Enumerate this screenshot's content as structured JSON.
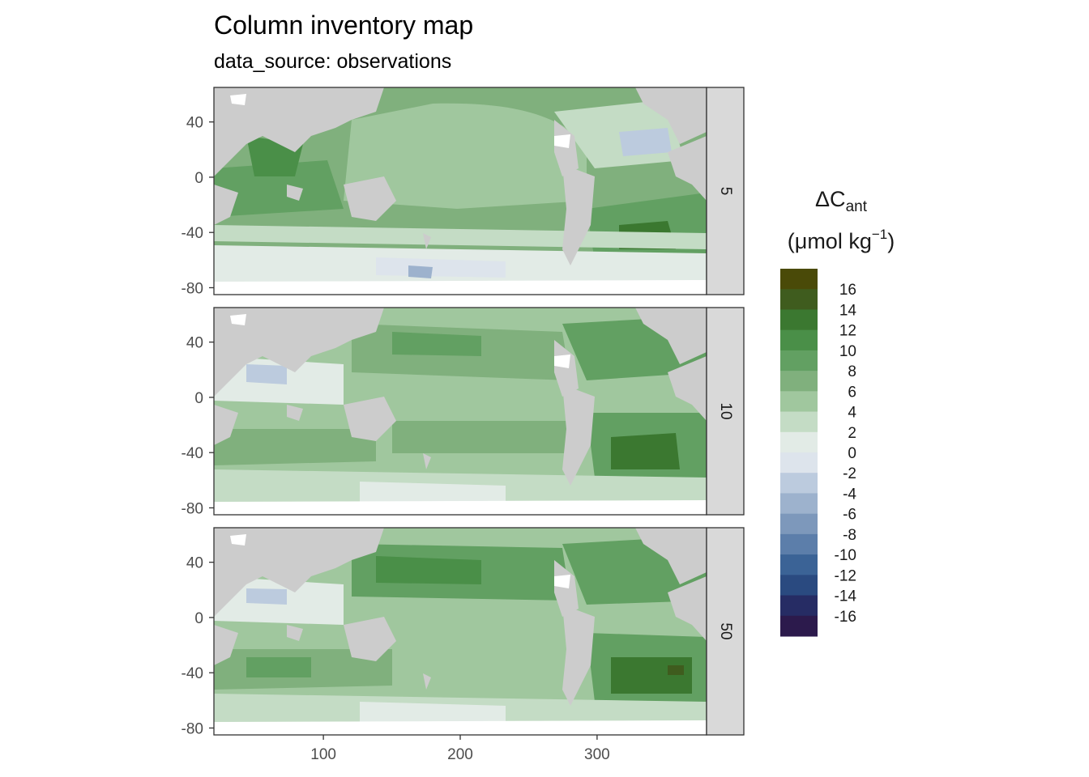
{
  "title": "Column inventory map",
  "subtitle": "data_source: observations",
  "panels": [
    {
      "strip_label": "5"
    },
    {
      "strip_label": "10"
    },
    {
      "strip_label": "50"
    }
  ],
  "y_axis": {
    "ticks": [
      40,
      0,
      -40,
      -80
    ],
    "tick_labels": [
      "40",
      "0",
      "-40",
      "-80"
    ]
  },
  "x_axis": {
    "ticks": [
      100,
      200,
      300
    ],
    "tick_labels": [
      "100",
      "200",
      "300"
    ],
    "range": [
      20,
      380
    ]
  },
  "legend": {
    "title_symbol": "ΔC",
    "title_subscript": "ant",
    "units_prefix": "(μmol kg",
    "units_superscript": "−1",
    "units_suffix": ")",
    "labels": [
      "16",
      "14",
      "12",
      "10",
      "8",
      "6",
      "4",
      "2",
      "0",
      "-2",
      "-4",
      "-6",
      "-8",
      "-10",
      "-12",
      "-14",
      "-16"
    ],
    "colors": [
      "#4a4a08",
      "#3f5c1e",
      "#3b7830",
      "#4a8f48",
      "#62a062",
      "#80b07d",
      "#a0c79e",
      "#c4dcc5",
      "#e2ebe6",
      "#dde4ec",
      "#bccbde",
      "#9db2cd",
      "#7d98bb",
      "#5c7eaa",
      "#3b6396",
      "#2a4a80",
      "#262c64",
      "#2c1a4c"
    ]
  },
  "colors": {
    "land": "#cccccc",
    "missing": "#ffffff",
    "strip_bg": "#d9d9d9",
    "frame": "#333333"
  }
}
